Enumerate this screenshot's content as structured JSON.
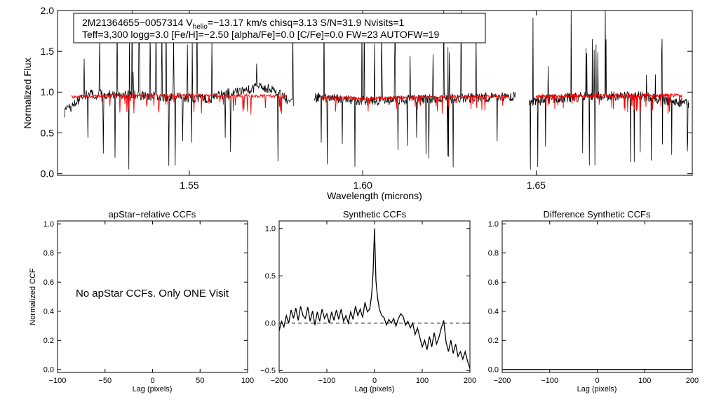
{
  "chart_data": [
    {
      "id": "spectrum",
      "type": "line",
      "title": "",
      "xlabel": "Wavelength (microns)",
      "ylabel": "Normalized Flux",
      "xlim": [
        1.512,
        1.695
      ],
      "ylim": [
        -0.02,
        2.0
      ],
      "x_ticks": [
        1.55,
        1.6,
        1.65
      ],
      "x_tick_labels": [
        "1.55",
        "1.60",
        "1.65"
      ],
      "y_ticks": [
        0.0,
        0.5,
        1.0,
        1.5,
        2.0
      ],
      "y_tick_labels": [
        "0.0",
        "0.5",
        "1.0",
        "1.5",
        "2.0"
      ],
      "grid": false,
      "chip_ranges": [
        [
          1.514,
          1.58
        ],
        [
          1.586,
          1.644
        ],
        [
          1.648,
          1.694
        ]
      ],
      "series": [
        {
          "role": "observed",
          "color": "#000000",
          "continuum": [
            [
              1.514,
              0.75
            ],
            [
              1.52,
              0.97
            ],
            [
              1.53,
              0.97
            ],
            [
              1.54,
              0.95
            ],
            [
              1.55,
              0.93
            ],
            [
              1.556,
              0.92
            ],
            [
              1.56,
              0.98
            ],
            [
              1.566,
              1.02
            ],
            [
              1.57,
              1.06
            ],
            [
              1.574,
              1.04
            ],
            [
              1.58,
              0.85
            ],
            [
              1.586,
              0.94
            ],
            [
              1.595,
              0.91
            ],
            [
              1.6,
              0.89
            ],
            [
              1.61,
              0.9
            ],
            [
              1.62,
              0.92
            ],
            [
              1.63,
              0.93
            ],
            [
              1.64,
              0.94
            ],
            [
              1.644,
              0.94
            ],
            [
              1.648,
              0.88
            ],
            [
              1.66,
              0.94
            ],
            [
              1.67,
              0.95
            ],
            [
              1.68,
              0.95
            ],
            [
              1.694,
              0.86
            ]
          ]
        },
        {
          "role": "model",
          "color": "#ff0000",
          "continuum": [
            [
              1.516,
              0.94
            ],
            [
              1.53,
              0.96
            ],
            [
              1.55,
              0.96
            ],
            [
              1.578,
              0.95
            ],
            [
              1.587,
              0.94
            ],
            [
              1.6,
              0.92
            ],
            [
              1.62,
              0.94
            ],
            [
              1.642,
              0.95
            ],
            [
              1.649,
              0.95
            ],
            [
              1.67,
              0.96
            ],
            [
              1.69,
              0.96
            ]
          ]
        }
      ],
      "annotation": {
        "line1": {
          "pre": "2M21364655−0057314  V",
          "sub": "helio",
          "post": "=−13.17 km/s  chisq=3.13  S/N=31.9  Nvisits=1"
        },
        "line2": "Teff=3,300 logg=3.0 [Fe/H]=−2.50 [alpha/Fe]=0.0 [C/Fe]=0.0 FW=23 AUTOFW=19"
      }
    },
    {
      "id": "apstar",
      "type": "line",
      "title": "apStar−relative CCFs",
      "xlabel": "Lag (pixels)",
      "ylabel": "Normalized CCF",
      "xlim": [
        -100,
        100
      ],
      "ylim": [
        -0.02,
        1.02
      ],
      "x_ticks": [
        -100,
        -50,
        0,
        50,
        100
      ],
      "x_tick_labels": [
        "−100",
        "−50",
        "0",
        "50",
        "100"
      ],
      "y_ticks": [
        0.0,
        0.2,
        0.4,
        0.6,
        0.8,
        1.0
      ],
      "y_tick_labels": [
        "0.0",
        "0.2",
        "0.4",
        "0.6",
        "0.8",
        "1.0"
      ],
      "message": "No apStar CCFs.  Only ONE Visit",
      "series": []
    },
    {
      "id": "synthetic",
      "type": "line",
      "title": "Synthetic CCFs",
      "xlabel": "Lag (pixels)",
      "xlim": [
        -200,
        200
      ],
      "ylim": [
        -0.52,
        1.08
      ],
      "x_ticks": [
        -200,
        -100,
        0,
        100,
        200
      ],
      "x_tick_labels": [
        "−200",
        "−100",
        "0",
        "100",
        "200"
      ],
      "y_ticks": [
        -0.5,
        0.0,
        0.5,
        1.0
      ],
      "y_tick_labels": [
        "−0.5",
        "0.0",
        "0.5",
        "1.0"
      ],
      "zero_line": {
        "y": 0.0,
        "style": "dashed"
      },
      "series": [
        {
          "x": [
            -200,
            -195,
            -190,
            -185,
            -180,
            -175,
            -170,
            -165,
            -160,
            -155,
            -150,
            -145,
            -140,
            -135,
            -130,
            -125,
            -120,
            -115,
            -110,
            -105,
            -100,
            -95,
            -90,
            -85,
            -80,
            -75,
            -70,
            -65,
            -60,
            -55,
            -50,
            -45,
            -40,
            -35,
            -30,
            -25,
            -20,
            -15,
            -10,
            -6,
            -3,
            -1,
            0,
            1,
            3,
            6,
            10,
            15,
            20,
            25,
            30,
            35,
            40,
            45,
            50,
            55,
            60,
            65,
            70,
            75,
            80,
            85,
            90,
            95,
            100,
            105,
            110,
            115,
            120,
            125,
            130,
            135,
            140,
            145,
            150,
            155,
            160,
            165,
            170,
            175,
            180,
            185,
            190,
            195,
            200
          ],
          "y": [
            -0.08,
            0.02,
            -0.04,
            0.08,
            0.0,
            0.14,
            0.05,
            0.16,
            0.03,
            0.18,
            0.08,
            0.05,
            0.17,
            0.02,
            0.13,
            -0.02,
            0.12,
            0.02,
            0.15,
            0.05,
            0.1,
            0.0,
            0.12,
            0.03,
            0.14,
            0.04,
            0.15,
            0.02,
            0.08,
            0.0,
            0.12,
            0.04,
            0.18,
            0.08,
            0.15,
            0.06,
            0.22,
            0.12,
            0.15,
            0.3,
            0.55,
            0.85,
            1.0,
            0.8,
            0.45,
            0.28,
            0.15,
            0.08,
            0.06,
            -0.02,
            0.04,
            0.0,
            0.05,
            -0.03,
            0.05,
            0.1,
            0.07,
            -0.02,
            0.02,
            -0.05,
            0.0,
            -0.12,
            -0.05,
            -0.15,
            -0.25,
            -0.18,
            -0.28,
            -0.14,
            -0.25,
            -0.1,
            -0.22,
            -0.15,
            -0.05,
            0.03,
            -0.2,
            -0.3,
            -0.18,
            -0.32,
            -0.22,
            -0.35,
            -0.3,
            -0.38,
            -0.3,
            -0.4,
            -0.48
          ]
        }
      ]
    },
    {
      "id": "difference",
      "type": "line",
      "title": "Difference Synthetic CCFs",
      "xlabel": "Lag (pixels)",
      "xlim": [
        -200,
        200
      ],
      "ylim": [
        -0.02,
        1.02
      ],
      "x_ticks": [
        -200,
        -100,
        0,
        100,
        200
      ],
      "x_tick_labels": [
        "−200",
        "−100",
        "0",
        "100",
        "200"
      ],
      "y_ticks": [
        0.0,
        0.2,
        0.4,
        0.6,
        0.8,
        1.0
      ],
      "y_tick_labels": [
        "0.0",
        "0.2",
        "0.4",
        "0.6",
        "0.8",
        "1.0"
      ],
      "series": [
        {
          "x": [
            -200,
            200
          ],
          "y": [
            0.0,
            0.0
          ]
        }
      ]
    }
  ]
}
